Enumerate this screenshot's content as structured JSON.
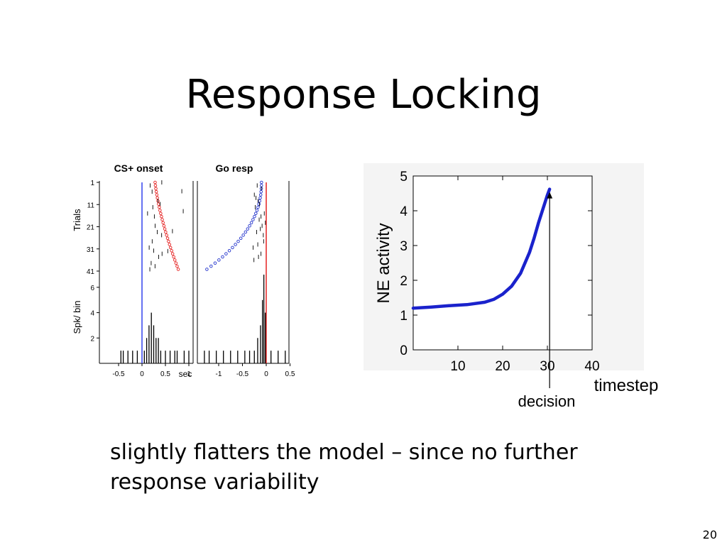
{
  "slide": {
    "title": "Response Locking",
    "caption_lines": [
      "slightly flatters the model – since no further",
      "response variability"
    ],
    "page_number": "20"
  },
  "raster_figure": {
    "panels": [
      {
        "title": "CS+ onset",
        "aligned_to": "x=0",
        "marker_color": "#3344ee",
        "dot_color": "#e52222"
      },
      {
        "title": "Go resp",
        "aligned_to": "x=0",
        "marker_color": "#e52222",
        "dot_color": "#2233cc"
      }
    ],
    "trials_axis": {
      "label": "Trials",
      "ticks": [
        "1",
        "11",
        "21",
        "31",
        "41"
      ]
    },
    "psth_axis": {
      "label": "Spk/ bin",
      "ticks": [
        "6",
        "4",
        "2"
      ]
    },
    "left_x_ticks": [
      "-0.5",
      "0",
      "0.5",
      "1"
    ],
    "right_x_ticks": [
      "-1",
      "-0.5",
      "0",
      "0.5"
    ],
    "x_unit": "sec"
  },
  "chart_data": {
    "type": "line",
    "xlabel": "timestep",
    "ylabel": "NE activity",
    "xlim": [
      0,
      40
    ],
    "ylim": [
      0,
      5
    ],
    "xticks": [
      "10",
      "20",
      "30",
      "40"
    ],
    "yticks": [
      "0",
      "1",
      "2",
      "3",
      "4",
      "5"
    ],
    "grid": false,
    "line_color": "#1a22cc",
    "series": [
      {
        "x": [
          0,
          4,
          8,
          12,
          16,
          18,
          20,
          22,
          24,
          26,
          27,
          28,
          29,
          30,
          30.5
        ],
        "y": [
          1.2,
          1.23,
          1.27,
          1.3,
          1.37,
          1.45,
          1.6,
          1.83,
          2.2,
          2.8,
          3.2,
          3.65,
          4.05,
          4.45,
          4.62
        ]
      }
    ],
    "annotation": {
      "text": "decision",
      "x": 30.5
    }
  }
}
